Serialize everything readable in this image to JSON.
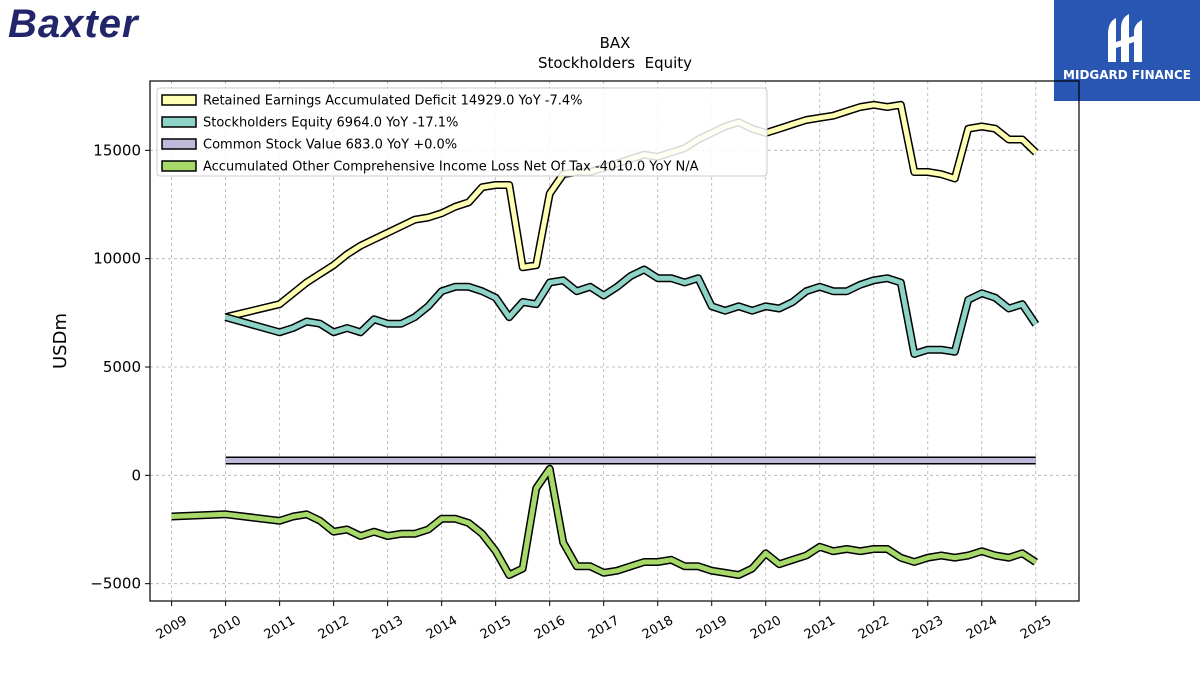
{
  "brand": {
    "name": "Baxter"
  },
  "badge": {
    "name": "MIDGARD FINANCE",
    "bg": "#2a56b3"
  },
  "chart_data": {
    "type": "line",
    "title": "BAX",
    "subtitle": "Stockholders  Equity",
    "ylabel": "USDm",
    "xlabel": "",
    "xlim": [
      2008.6,
      2025.8
    ],
    "ylim": [
      -5800,
      18200
    ],
    "x_ticks": [
      2009,
      2010,
      2011,
      2012,
      2013,
      2014,
      2015,
      2016,
      2017,
      2018,
      2019,
      2020,
      2021,
      2022,
      2023,
      2024,
      2025
    ],
    "y_ticks": [
      -5000,
      0,
      5000,
      10000,
      15000
    ],
    "grid": true,
    "legend_position": "top-left",
    "series": [
      {
        "name": "Retained Earnings Accumulated Deficit",
        "legend": "Retained Earnings Accumulated Deficit  14929.0 YoY -7.4%",
        "color": "#ffffb3",
        "x": [
          2010.0,
          2011.0,
          2011.25,
          2011.5,
          2011.75,
          2012.0,
          2012.25,
          2012.5,
          2012.75,
          2013.0,
          2013.25,
          2013.5,
          2013.75,
          2014.0,
          2014.25,
          2014.5,
          2014.75,
          2015.0,
          2015.25,
          2015.5,
          2015.75,
          2016.0,
          2016.25,
          2016.5,
          2016.75,
          2017.0,
          2017.25,
          2017.5,
          2017.75,
          2018.0,
          2018.25,
          2018.5,
          2018.75,
          2019.0,
          2019.25,
          2019.5,
          2019.75,
          2020.0,
          2020.25,
          2020.5,
          2020.75,
          2021.0,
          2021.25,
          2021.5,
          2021.75,
          2022.0,
          2022.25,
          2022.5,
          2022.75,
          2023.0,
          2023.25,
          2023.5,
          2023.75,
          2024.0,
          2024.25,
          2024.5,
          2024.75,
          2025.0
        ],
        "values": [
          7300,
          7900,
          8400,
          8900,
          9300,
          9700,
          10200,
          10600,
          10900,
          11200,
          11500,
          11800,
          11900,
          12100,
          12400,
          12600,
          13300,
          13400,
          13400,
          9600,
          9700,
          13000,
          13900,
          14000,
          14000,
          14200,
          14400,
          14600,
          14800,
          14700,
          14900,
          15100,
          15500,
          15800,
          16100,
          16300,
          16000,
          15800,
          16000,
          16200,
          16400,
          16500,
          16600,
          16800,
          17000,
          17100,
          17000,
          17100,
          14000,
          14000,
          13900,
          13700,
          16000,
          16100,
          16000,
          15500,
          15500,
          14900
        ]
      },
      {
        "name": "Stockholders Equity",
        "legend": "Stockholders Equity  6964.0 YoY -17.1%",
        "color": "#8dd3c7",
        "x": [
          2010.0,
          2011.0,
          2011.25,
          2011.5,
          2011.75,
          2012.0,
          2012.25,
          2012.5,
          2012.75,
          2013.0,
          2013.25,
          2013.5,
          2013.75,
          2014.0,
          2014.25,
          2014.5,
          2014.75,
          2015.0,
          2015.25,
          2015.5,
          2015.75,
          2016.0,
          2016.25,
          2016.5,
          2016.75,
          2017.0,
          2017.25,
          2017.5,
          2017.75,
          2018.0,
          2018.25,
          2018.5,
          2018.75,
          2019.0,
          2019.25,
          2019.5,
          2019.75,
          2020.0,
          2020.25,
          2020.5,
          2020.75,
          2021.0,
          2021.25,
          2021.5,
          2021.75,
          2022.0,
          2022.25,
          2022.5,
          2022.75,
          2023.0,
          2023.25,
          2023.5,
          2023.75,
          2024.0,
          2024.25,
          2024.5,
          2024.75,
          2025.0
        ],
        "values": [
          7300,
          6600,
          6800,
          7100,
          7000,
          6600,
          6800,
          6600,
          7200,
          7000,
          7000,
          7300,
          7800,
          8500,
          8700,
          8700,
          8500,
          8200,
          7300,
          8000,
          7900,
          8900,
          9000,
          8500,
          8700,
          8300,
          8700,
          9200,
          9500,
          9100,
          9100,
          8900,
          9100,
          7800,
          7600,
          7800,
          7600,
          7800,
          7700,
          8000,
          8500,
          8700,
          8500,
          8500,
          8800,
          9000,
          9100,
          8900,
          5600,
          5800,
          5800,
          5700,
          8100,
          8400,
          8200,
          7700,
          7900,
          6964
        ]
      },
      {
        "name": "Common Stock Value",
        "legend": "Common Stock Value  683.0 YoY +0.0%",
        "color": "#bebada",
        "x": [
          2010.0,
          2025.0
        ],
        "values": [
          683,
          683
        ]
      },
      {
        "name": "Accumulated Other Comprehensive Income Loss Net Of Tax",
        "legend": "Accumulated Other Comprehensive Income Loss Net Of Tax  -4010.0 YoY N/A",
        "color": "#a6d96a",
        "x": [
          2009.0,
          2010.0,
          2011.0,
          2011.25,
          2011.5,
          2011.75,
          2012.0,
          2012.25,
          2012.5,
          2012.75,
          2013.0,
          2013.25,
          2013.5,
          2013.75,
          2014.0,
          2014.25,
          2014.5,
          2014.75,
          2015.0,
          2015.25,
          2015.5,
          2015.75,
          2016.0,
          2016.25,
          2016.5,
          2016.75,
          2017.0,
          2017.25,
          2017.5,
          2017.75,
          2018.0,
          2018.25,
          2018.5,
          2018.75,
          2019.0,
          2019.25,
          2019.5,
          2019.75,
          2020.0,
          2020.25,
          2020.5,
          2020.75,
          2021.0,
          2021.25,
          2021.5,
          2021.75,
          2022.0,
          2022.25,
          2022.5,
          2022.75,
          2023.0,
          2023.25,
          2023.5,
          2023.75,
          2024.0,
          2024.25,
          2024.5,
          2024.75,
          2025.0
        ],
        "values": [
          -1900,
          -1800,
          -2100,
          -1900,
          -1800,
          -2100,
          -2600,
          -2500,
          -2800,
          -2600,
          -2800,
          -2700,
          -2700,
          -2500,
          -2000,
          -2000,
          -2200,
          -2700,
          -3500,
          -4600,
          -4300,
          -600,
          300,
          -3100,
          -4200,
          -4200,
          -4500,
          -4400,
          -4200,
          -4000,
          -4000,
          -3900,
          -4200,
          -4200,
          -4400,
          -4500,
          -4600,
          -4300,
          -3600,
          -4100,
          -3900,
          -3700,
          -3300,
          -3500,
          -3400,
          -3500,
          -3400,
          -3400,
          -3800,
          -4000,
          -3800,
          -3700,
          -3800,
          -3700,
          -3500,
          -3700,
          -3800,
          -3600,
          -4010
        ]
      }
    ]
  }
}
